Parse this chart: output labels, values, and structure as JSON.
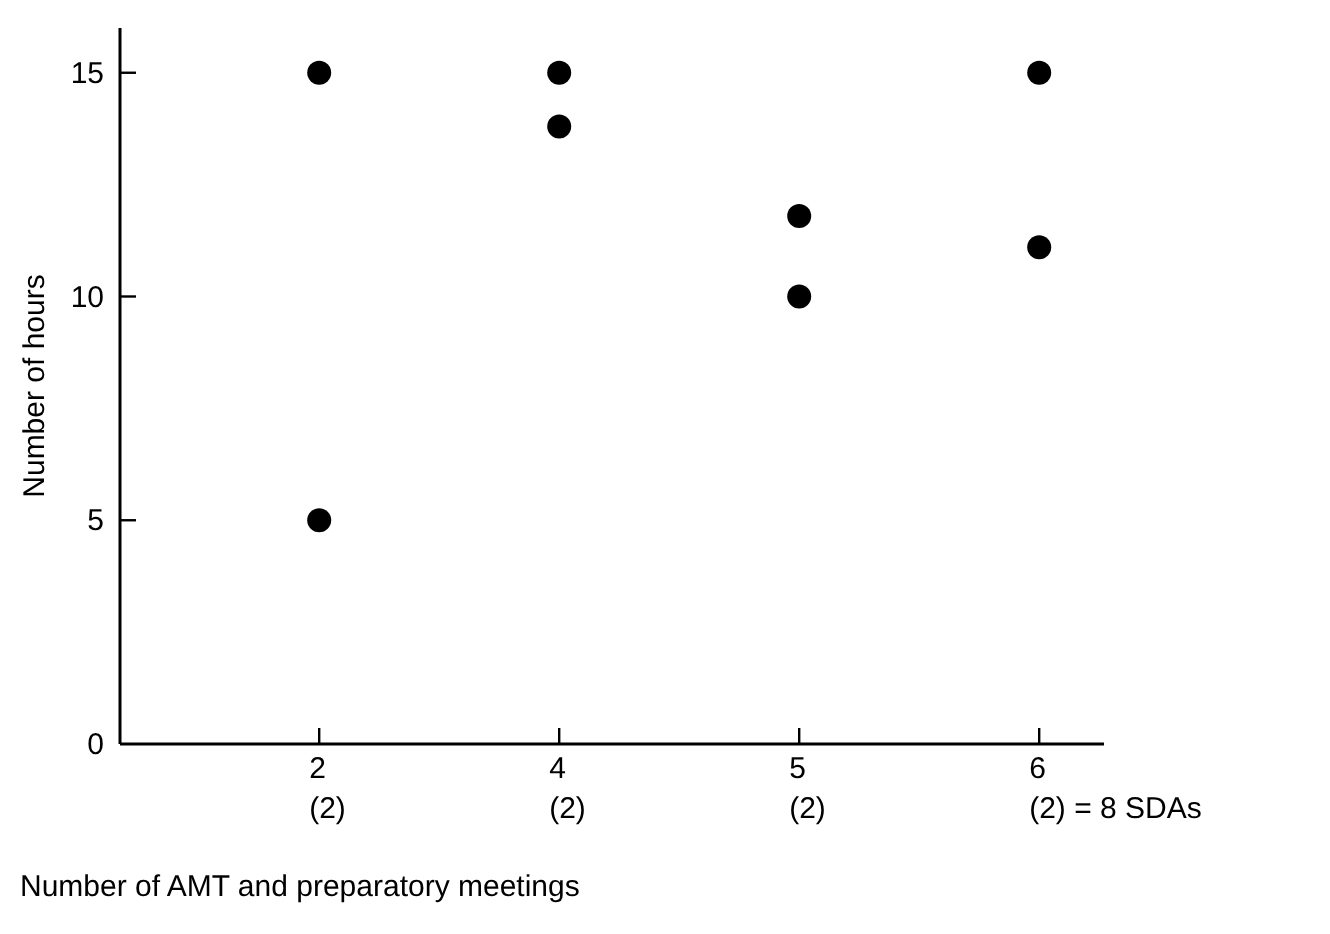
{
  "chart_data": {
    "type": "scatter",
    "xlabel": "Number of AMT and preparatory meetings",
    "ylabel": "Number of hours",
    "categories": [
      "2\n(2)",
      "4\n(2)",
      "5\n(2)",
      "6\n(2) = 8 SDAs"
    ],
    "series": [
      {
        "color": "#000000",
        "values": [
          15,
          15,
          11.8,
          15
        ]
      },
      {
        "color": "#000000",
        "values": [
          5,
          13.8,
          10,
          11.1
        ]
      }
    ],
    "ylim": [
      0,
      16
    ],
    "yticks": [
      0,
      5,
      10,
      15
    ],
    "grid": false,
    "marker": "circle"
  }
}
